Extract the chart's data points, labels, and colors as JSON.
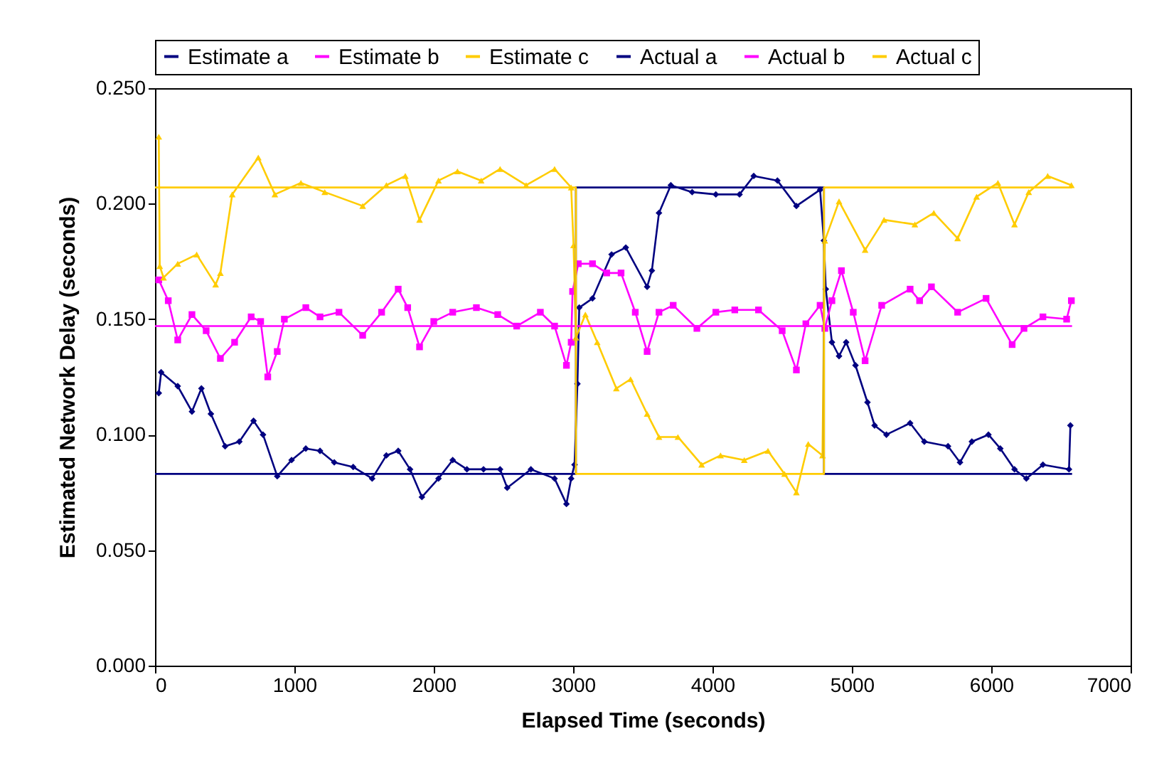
{
  "chart_data": {
    "type": "line",
    "xlabel": "Elapsed Time (seconds)",
    "ylabel": "Estimated Network Delay (seconds)",
    "xlim": [
      0,
      7000
    ],
    "xticks": [
      0,
      1000,
      2000,
      3000,
      4000,
      5000,
      6000,
      7000
    ],
    "ylim": [
      0,
      0.25
    ],
    "yticks": [
      {
        "value": 0,
        "label": "0.000"
      },
      {
        "value": 0.05,
        "label": "0.050"
      },
      {
        "value": 0.1,
        "label": "0.100"
      },
      {
        "value": 0.15,
        "label": "0.150"
      },
      {
        "value": 0.2,
        "label": "0.200"
      },
      {
        "value": 0.25,
        "label": "0.250"
      }
    ],
    "grid": false,
    "legend": "top",
    "line_style": "solid",
    "series": [
      {
        "name": "Estimate a",
        "color": "#000080",
        "marker": "diamond",
        "x": [
          27,
          44,
          163,
          265,
          333,
          401,
          503,
          605,
          707,
          775,
          877,
          980,
          1082,
          1184,
          1286,
          1422,
          1558,
          1660,
          1745,
          1830,
          1915,
          2034,
          2136,
          2238,
          2357,
          2476,
          2527,
          2697,
          2867,
          2952,
          2986,
          3010,
          3031,
          3044,
          3139,
          3276,
          3378,
          3531,
          3565,
          3616,
          3701,
          3854,
          4024,
          4194,
          4296,
          4466,
          4602,
          4772,
          4799,
          4813,
          4857,
          4908,
          4959,
          5026,
          5112,
          5163,
          5248,
          5418,
          5520,
          5690,
          5776,
          5861,
          5980,
          6065,
          6167,
          6252,
          6371,
          6558,
          6568
        ],
        "values": [
          0.118,
          0.127,
          0.121,
          0.11,
          0.12,
          0.109,
          0.095,
          0.097,
          0.106,
          0.1,
          0.082,
          0.089,
          0.094,
          0.093,
          0.088,
          0.086,
          0.081,
          0.091,
          0.093,
          0.085,
          0.073,
          0.081,
          0.089,
          0.085,
          0.085,
          0.085,
          0.077,
          0.085,
          0.081,
          0.07,
          0.081,
          0.087,
          0.122,
          0.155,
          0.159,
          0.178,
          0.181,
          0.164,
          0.171,
          0.196,
          0.208,
          0.205,
          0.204,
          0.204,
          0.212,
          0.21,
          0.199,
          0.206,
          0.184,
          0.163,
          0.14,
          0.134,
          0.14,
          0.13,
          0.114,
          0.104,
          0.1,
          0.105,
          0.097,
          0.095,
          0.088,
          0.097,
          0.1,
          0.094,
          0.085,
          0.081,
          0.087,
          0.085,
          0.104
        ]
      },
      {
        "name": "Estimate b",
        "color": "#ff00ff",
        "marker": "square",
        "x": [
          27,
          95,
          163,
          265,
          367,
          469,
          571,
          690,
          758,
          809,
          877,
          928,
          1082,
          1184,
          1320,
          1490,
          1626,
          1745,
          1813,
          1898,
          2000,
          2136,
          2306,
          2459,
          2595,
          2765,
          2867,
          2952,
          2986,
          2996,
          3037,
          3139,
          3241,
          3344,
          3446,
          3531,
          3616,
          3718,
          3888,
          4024,
          4160,
          4330,
          4500,
          4602,
          4670,
          4772,
          4806,
          4857,
          4925,
          5010,
          5095,
          5214,
          5418,
          5486,
          5571,
          5759,
          5963,
          6150,
          6235,
          6371,
          6541,
          6575
        ],
        "values": [
          0.167,
          0.158,
          0.141,
          0.152,
          0.145,
          0.133,
          0.14,
          0.151,
          0.149,
          0.125,
          0.136,
          0.15,
          0.155,
          0.151,
          0.153,
          0.143,
          0.153,
          0.163,
          0.155,
          0.138,
          0.149,
          0.153,
          0.155,
          0.152,
          0.147,
          0.153,
          0.147,
          0.13,
          0.14,
          0.162,
          0.174,
          0.174,
          0.17,
          0.17,
          0.153,
          0.136,
          0.153,
          0.156,
          0.146,
          0.153,
          0.154,
          0.154,
          0.145,
          0.128,
          0.148,
          0.156,
          0.146,
          0.158,
          0.171,
          0.153,
          0.132,
          0.156,
          0.163,
          0.158,
          0.164,
          0.153,
          0.159,
          0.139,
          0.146,
          0.151,
          0.15,
          0.158
        ]
      },
      {
        "name": "Estimate c",
        "color": "#ffcc00",
        "marker": "triangle",
        "x": [
          27,
          34,
          61,
          163,
          299,
          435,
          469,
          554,
          741,
          860,
          1047,
          1218,
          1490,
          1660,
          1796,
          1898,
          2034,
          2170,
          2340,
          2476,
          2663,
          2867,
          2986,
          3003,
          3020,
          3088,
          3173,
          3310,
          3412,
          3531,
          3616,
          3752,
          3922,
          4058,
          4228,
          4398,
          4517,
          4602,
          4687,
          4789,
          4806,
          4908,
          5095,
          5231,
          5452,
          5588,
          5759,
          5895,
          6048,
          6167,
          6269,
          6405,
          6575
        ],
        "values": [
          0.229,
          0.173,
          0.168,
          0.174,
          0.178,
          0.165,
          0.17,
          0.204,
          0.22,
          0.204,
          0.209,
          0.205,
          0.199,
          0.208,
          0.212,
          0.193,
          0.21,
          0.214,
          0.21,
          0.215,
          0.208,
          0.215,
          0.207,
          0.182,
          0.142,
          0.152,
          0.14,
          0.12,
          0.124,
          0.109,
          0.099,
          0.099,
          0.087,
          0.091,
          0.089,
          0.093,
          0.083,
          0.075,
          0.096,
          0.091,
          0.184,
          0.201,
          0.18,
          0.193,
          0.191,
          0.196,
          0.185,
          0.203,
          0.209,
          0.191,
          0.205,
          0.212,
          0.208
        ]
      },
      {
        "name": "Actual a",
        "color": "#000080",
        "marker": "none",
        "x": [
          0,
          3020,
          3020,
          4800,
          4800,
          6580
        ],
        "values": [
          0.083,
          0.083,
          0.207,
          0.207,
          0.083,
          0.083
        ]
      },
      {
        "name": "Actual b",
        "color": "#ff00ff",
        "marker": "none",
        "x": [
          0,
          6580
        ],
        "values": [
          0.147,
          0.147
        ]
      },
      {
        "name": "Actual c",
        "color": "#ffcc00",
        "marker": "none",
        "x": [
          0,
          3020,
          3020,
          4800,
          4800,
          6580
        ],
        "values": [
          0.207,
          0.207,
          0.083,
          0.083,
          0.207,
          0.207
        ]
      }
    ]
  }
}
